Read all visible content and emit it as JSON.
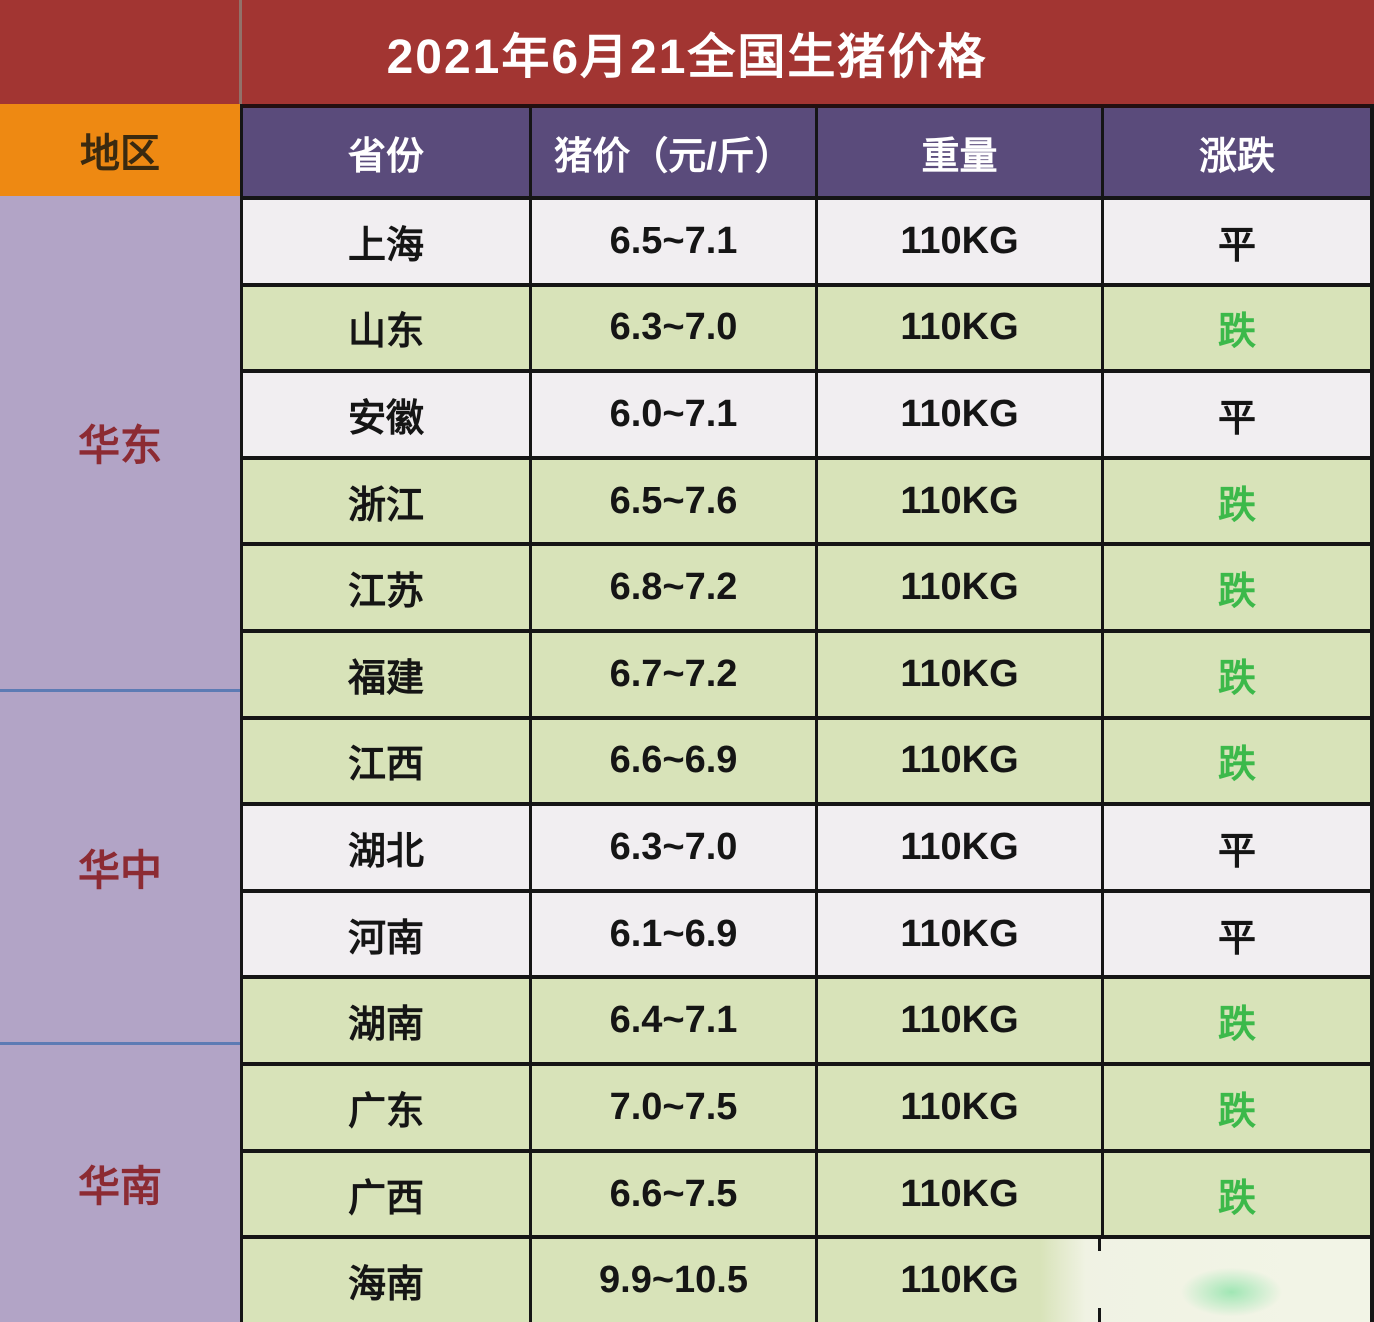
{
  "title": "2021年6月21全国生猪价格",
  "columns": {
    "region": "地区",
    "province": "省份",
    "price": "猪价（元/斤）",
    "weight": "重量",
    "change": "涨跌"
  },
  "chart_data": {
    "type": "table",
    "title": "2021年6月21全国生猪价格",
    "columns": [
      "地区",
      "省份",
      "猪价（元/斤）",
      "重量",
      "涨跌"
    ],
    "region_groups": [
      {
        "name": "华东",
        "provinces": [
          "上海",
          "山东",
          "安徽",
          "浙江",
          "江苏",
          "福建"
        ]
      },
      {
        "name": "华中",
        "provinces": [
          "江西",
          "湖北",
          "河南",
          "湖南"
        ]
      },
      {
        "name": "华南",
        "provinces": [
          "广东",
          "广西",
          "海南"
        ]
      }
    ],
    "rows": [
      {
        "region": "华东",
        "province": "上海",
        "price": "6.5~7.1",
        "price_min": 6.5,
        "price_max": 7.1,
        "weight": "110KG",
        "change": "平",
        "trend": "flat"
      },
      {
        "region": "华东",
        "province": "山东",
        "price": "6.3~7.0",
        "price_min": 6.3,
        "price_max": 7.0,
        "weight": "110KG",
        "change": "跌",
        "trend": "down"
      },
      {
        "region": "华东",
        "province": "安徽",
        "price": "6.0~7.1",
        "price_min": 6.0,
        "price_max": 7.1,
        "weight": "110KG",
        "change": "平",
        "trend": "flat"
      },
      {
        "region": "华东",
        "province": "浙江",
        "price": "6.5~7.6",
        "price_min": 6.5,
        "price_max": 7.6,
        "weight": "110KG",
        "change": "跌",
        "trend": "down"
      },
      {
        "region": "华东",
        "province": "江苏",
        "price": "6.8~7.2",
        "price_min": 6.8,
        "price_max": 7.2,
        "weight": "110KG",
        "change": "跌",
        "trend": "down"
      },
      {
        "region": "华东",
        "province": "福建",
        "price": "6.7~7.2",
        "price_min": 6.7,
        "price_max": 7.2,
        "weight": "110KG",
        "change": "跌",
        "trend": "down"
      },
      {
        "region": "华中",
        "province": "江西",
        "price": "6.6~6.9",
        "price_min": 6.6,
        "price_max": 6.9,
        "weight": "110KG",
        "change": "跌",
        "trend": "down"
      },
      {
        "region": "华中",
        "province": "湖北",
        "price": "6.3~7.0",
        "price_min": 6.3,
        "price_max": 7.0,
        "weight": "110KG",
        "change": "平",
        "trend": "flat"
      },
      {
        "region": "华中",
        "province": "河南",
        "price": "6.1~6.9",
        "price_min": 6.1,
        "price_max": 6.9,
        "weight": "110KG",
        "change": "平",
        "trend": "flat"
      },
      {
        "region": "华中",
        "province": "湖南",
        "price": "6.4~7.1",
        "price_min": 6.4,
        "price_max": 7.1,
        "weight": "110KG",
        "change": "跌",
        "trend": "down"
      },
      {
        "region": "华南",
        "province": "广东",
        "price": "7.0~7.5",
        "price_min": 7.0,
        "price_max": 7.5,
        "weight": "110KG",
        "change": "跌",
        "trend": "down"
      },
      {
        "region": "华南",
        "province": "广西",
        "price": "6.6~7.5",
        "price_min": 6.6,
        "price_max": 7.5,
        "weight": "110KG",
        "change": "跌",
        "trend": "down"
      },
      {
        "region": "华南",
        "province": "海南",
        "price": "9.9~10.5",
        "price_min": 9.9,
        "price_max": 10.5,
        "weight": "110KG",
        "change": "",
        "trend": "down",
        "obscured": true
      }
    ],
    "notes": "海南行涨跌单元格被白色涂抹痕迹遮挡，仅余淡绿色残影"
  },
  "colors": {
    "title_bg": "#a23532",
    "region_header_bg": "#ee8912",
    "region_header_text": "#3a2a10",
    "table_header_bg": "#5a4b7b",
    "table_header_text": "#ffffff",
    "region_col_bg": "#b2a4c6",
    "region_label_text": "#8c2b33",
    "row_flat_bg": "#f1eef1",
    "row_down_bg": "#d8e3b9",
    "down_text": "#3cb94a",
    "flat_text": "#151515",
    "grid_border": "#151515",
    "region_separator": "#5d7bb4"
  }
}
